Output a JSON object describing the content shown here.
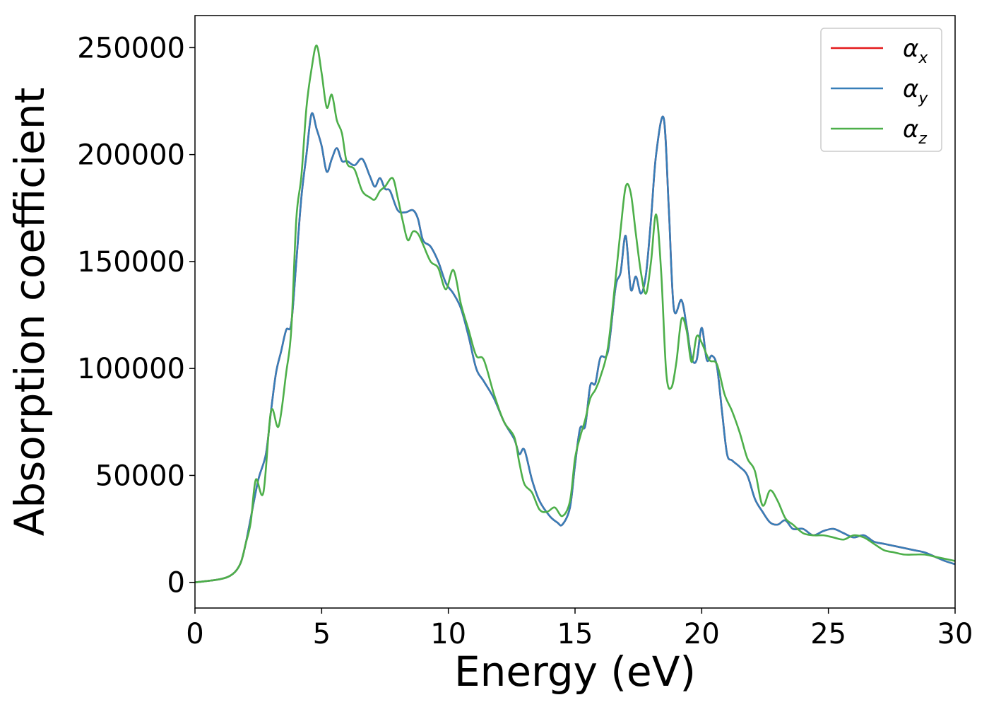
{
  "chart_data": {
    "type": "line",
    "title": "",
    "xlabel": "Energy (eV)",
    "ylabel": "Absorption coefficient",
    "xlim": [
      0,
      30
    ],
    "ylim": [
      -12000,
      265000
    ],
    "xticks": [
      0,
      5,
      10,
      15,
      20,
      25,
      30
    ],
    "yticks": [
      0,
      50000,
      100000,
      150000,
      200000,
      250000
    ],
    "grid": false,
    "legend_position": "top-right",
    "series": [
      {
        "name": "α",
        "subscript": "x",
        "color": "#e41a1c",
        "x": [
          0,
          1,
          1.5,
          1.8,
          2,
          2.2,
          2.5,
          2.8,
          3.0,
          3.2,
          3.4,
          3.6,
          3.8,
          4.0,
          4.2,
          4.4,
          4.6,
          4.8,
          5.0,
          5.2,
          5.4,
          5.6,
          5.8,
          6.0,
          6.3,
          6.6,
          6.9,
          7.1,
          7.3,
          7.5,
          7.7,
          8.0,
          8.3,
          8.6,
          8.8,
          9.0,
          9.3,
          9.6,
          9.9,
          10.2,
          10.5,
          10.8,
          11.1,
          11.4,
          11.8,
          12.2,
          12.6,
          12.8,
          13.0,
          13.3,
          13.6,
          14.0,
          14.3,
          14.5,
          14.8,
          15.0,
          15.2,
          15.4,
          15.6,
          15.8,
          16.0,
          16.3,
          16.6,
          16.8,
          17.0,
          17.2,
          17.4,
          17.6,
          17.8,
          18.0,
          18.2,
          18.5,
          18.7,
          18.9,
          19.2,
          19.4,
          19.6,
          19.8,
          20.0,
          20.2,
          20.4,
          20.6,
          20.8,
          21.0,
          21.2,
          21.5,
          21.8,
          22.1,
          22.4,
          22.7,
          23.0,
          23.3,
          23.6,
          24.0,
          24.4,
          24.8,
          25.2,
          25.6,
          26.0,
          26.4,
          26.8,
          27.2,
          27.6,
          28.0,
          28.4,
          28.8,
          29.2,
          29.6,
          30.0
        ],
        "values": [
          0,
          1500,
          4000,
          9000,
          18000,
          30000,
          48000,
          60000,
          80000,
          98000,
          108000,
          118000,
          121000,
          150000,
          180000,
          200000,
          219000,
          212000,
          204000,
          192000,
          198000,
          203000,
          197000,
          197000,
          195000,
          198000,
          190000,
          185000,
          189000,
          184000,
          183000,
          174000,
          173000,
          174000,
          170000,
          160000,
          157000,
          150000,
          140000,
          135000,
          128000,
          115000,
          100000,
          94000,
          86000,
          75000,
          67000,
          60000,
          62000,
          48000,
          38000,
          31000,
          28000,
          27000,
          35000,
          55000,
          72000,
          73000,
          92000,
          93000,
          105000,
          108000,
          138000,
          145000,
          162000,
          137000,
          143000,
          135000,
          144000,
          170000,
          200000,
          217000,
          175000,
          128000,
          132000,
          120000,
          105000,
          104000,
          119000,
          104000,
          106000,
          101000,
          80000,
          60000,
          57000,
          54000,
          50000,
          39000,
          33000,
          28000,
          27000,
          29000,
          25000,
          25000,
          22000,
          24000,
          25000,
          23000,
          21000,
          22000,
          19000,
          18000,
          17000,
          16000,
          15000,
          14000,
          12000,
          10000,
          8500
        ]
      },
      {
        "name": "α",
        "subscript": "y",
        "color": "#377eb8",
        "x": [
          0,
          1,
          1.5,
          1.8,
          2,
          2.2,
          2.5,
          2.8,
          3.0,
          3.2,
          3.4,
          3.6,
          3.8,
          4.0,
          4.2,
          4.4,
          4.6,
          4.8,
          5.0,
          5.2,
          5.4,
          5.6,
          5.8,
          6.0,
          6.3,
          6.6,
          6.9,
          7.1,
          7.3,
          7.5,
          7.7,
          8.0,
          8.3,
          8.6,
          8.8,
          9.0,
          9.3,
          9.6,
          9.9,
          10.2,
          10.5,
          10.8,
          11.1,
          11.4,
          11.8,
          12.2,
          12.6,
          12.8,
          13.0,
          13.3,
          13.6,
          14.0,
          14.3,
          14.5,
          14.8,
          15.0,
          15.2,
          15.4,
          15.6,
          15.8,
          16.0,
          16.3,
          16.6,
          16.8,
          17.0,
          17.2,
          17.4,
          17.6,
          17.8,
          18.0,
          18.2,
          18.5,
          18.7,
          18.9,
          19.2,
          19.4,
          19.6,
          19.8,
          20.0,
          20.2,
          20.4,
          20.6,
          20.8,
          21.0,
          21.2,
          21.5,
          21.8,
          22.1,
          22.4,
          22.7,
          23.0,
          23.3,
          23.6,
          24.0,
          24.4,
          24.8,
          25.2,
          25.6,
          26.0,
          26.4,
          26.8,
          27.2,
          27.6,
          28.0,
          28.4,
          28.8,
          29.2,
          29.6,
          30.0
        ],
        "values": [
          0,
          1500,
          4000,
          9000,
          18000,
          30000,
          48000,
          60000,
          80000,
          98000,
          108000,
          118000,
          121000,
          150000,
          180000,
          200000,
          219000,
          212000,
          204000,
          192000,
          198000,
          203000,
          197000,
          197000,
          195000,
          198000,
          190000,
          185000,
          189000,
          184000,
          183000,
          174000,
          173000,
          174000,
          170000,
          160000,
          157000,
          150000,
          140000,
          135000,
          128000,
          115000,
          100000,
          94000,
          86000,
          75000,
          67000,
          60000,
          62000,
          48000,
          38000,
          31000,
          28000,
          27000,
          35000,
          55000,
          72000,
          73000,
          92000,
          93000,
          105000,
          108000,
          138000,
          145000,
          162000,
          137000,
          143000,
          135000,
          144000,
          170000,
          200000,
          217000,
          175000,
          128000,
          132000,
          120000,
          105000,
          104000,
          119000,
          104000,
          106000,
          101000,
          80000,
          60000,
          57000,
          54000,
          50000,
          39000,
          33000,
          28000,
          27000,
          29000,
          25000,
          25000,
          22000,
          24000,
          25000,
          23000,
          21000,
          22000,
          19000,
          18000,
          17000,
          16000,
          15000,
          14000,
          12000,
          10000,
          8500
        ]
      },
      {
        "name": "α",
        "subscript": "z",
        "color": "#4daf4a",
        "x": [
          0,
          1,
          1.5,
          1.8,
          2,
          2.2,
          2.4,
          2.7,
          3.0,
          3.3,
          3.6,
          3.8,
          4.0,
          4.2,
          4.4,
          4.6,
          4.8,
          5.0,
          5.2,
          5.4,
          5.6,
          5.8,
          6.0,
          6.3,
          6.6,
          6.9,
          7.1,
          7.3,
          7.5,
          7.8,
          8.0,
          8.2,
          8.4,
          8.6,
          8.8,
          9.0,
          9.3,
          9.6,
          9.9,
          10.2,
          10.5,
          10.8,
          11.1,
          11.4,
          11.8,
          12.2,
          12.6,
          12.8,
          13.0,
          13.3,
          13.6,
          13.9,
          14.2,
          14.5,
          14.8,
          15.0,
          15.2,
          15.4,
          15.6,
          15.8,
          16.0,
          16.3,
          16.6,
          16.8,
          17.0,
          17.2,
          17.4,
          17.6,
          17.8,
          18.0,
          18.2,
          18.4,
          18.6,
          18.8,
          19.0,
          19.2,
          19.4,
          19.6,
          19.8,
          20.0,
          20.3,
          20.6,
          20.9,
          21.2,
          21.5,
          21.8,
          22.1,
          22.4,
          22.7,
          23.0,
          23.3,
          23.6,
          24.0,
          24.4,
          24.8,
          25.2,
          25.6,
          26.0,
          26.4,
          26.8,
          27.2,
          27.6,
          28.0,
          28.4,
          28.8,
          29.2,
          29.6,
          30.0
        ],
        "values": [
          0,
          1500,
          4000,
          9000,
          18000,
          28000,
          48000,
          42000,
          80000,
          73000,
          98000,
          118000,
          170000,
          190000,
          222000,
          240000,
          251000,
          238000,
          222000,
          228000,
          216000,
          210000,
          196000,
          193000,
          183000,
          180000,
          179000,
          183000,
          185000,
          189000,
          180000,
          169000,
          160000,
          164000,
          163000,
          158000,
          150000,
          147000,
          137000,
          146000,
          130000,
          118000,
          106000,
          104000,
          88000,
          75000,
          68000,
          56000,
          46000,
          42000,
          34000,
          33000,
          35000,
          31000,
          38000,
          58000,
          68000,
          76000,
          86000,
          90000,
          96000,
          110000,
          142000,
          165000,
          185000,
          182000,
          163000,
          145000,
          135000,
          150000,
          172000,
          145000,
          98000,
          91000,
          103000,
          123000,
          118000,
          103000,
          115000,
          112000,
          104000,
          102000,
          88000,
          80000,
          70000,
          58000,
          52000,
          36000,
          43000,
          38000,
          30000,
          27000,
          23000,
          22000,
          22000,
          21000,
          20000,
          22000,
          21000,
          18000,
          15000,
          14000,
          13000,
          13000,
          13000,
          12000,
          11000,
          10000
        ]
      }
    ]
  }
}
